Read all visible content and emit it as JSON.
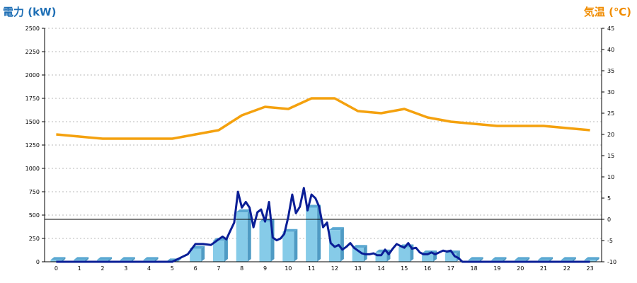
{
  "chart_data": {
    "type": "bar",
    "y_left_label": "電力 (kW)",
    "y_right_label": "気温 (℃)",
    "categories": [
      "0",
      "1",
      "2",
      "3",
      "4",
      "5",
      "6",
      "7",
      "8",
      "9",
      "10",
      "11",
      "12",
      "13",
      "14",
      "15",
      "16",
      "17",
      "18",
      "19",
      "20",
      "21",
      "22",
      "23"
    ],
    "y_left_ticks": [
      "0",
      "250",
      "500",
      "750",
      "1000",
      "1250",
      "1500",
      "1750",
      "2000",
      "2250",
      "2500"
    ],
    "y_right_ticks": [
      "-10",
      "-5",
      "0",
      "5",
      "10",
      "15",
      "20",
      "25",
      "30",
      "35",
      "40",
      "45"
    ],
    "ylim_left": [
      0,
      2500
    ],
    "ylim_right": [
      -10,
      45
    ],
    "grid": true,
    "reference_line_right": 0,
    "series": [
      {
        "type": "bar",
        "axis": "left",
        "values": [
          20,
          20,
          20,
          20,
          20,
          5,
          140,
          225,
          530,
          430,
          320,
          580,
          340,
          150,
          100,
          155,
          90,
          90,
          20,
          20,
          20,
          20,
          20,
          20
        ]
      },
      {
        "type": "line",
        "axis": "left",
        "x": [
          0,
          1,
          2,
          3,
          4,
          5,
          5.33,
          5.67,
          6,
          6.33,
          6.67,
          7,
          7.17,
          7.33,
          7.5,
          7.67,
          7.83,
          8,
          8.17,
          8.33,
          8.5,
          8.67,
          8.83,
          9,
          9.17,
          9.33,
          9.5,
          9.67,
          9.83,
          10,
          10.17,
          10.33,
          10.5,
          10.67,
          10.83,
          11,
          11.17,
          11.33,
          11.5,
          11.67,
          11.83,
          12,
          12.17,
          12.33,
          12.5,
          12.67,
          12.83,
          13,
          13.17,
          13.33,
          13.5,
          13.67,
          13.83,
          14,
          14.17,
          14.33,
          14.5,
          14.67,
          14.83,
          15,
          15.17,
          15.33,
          15.5,
          15.67,
          15.83,
          16,
          16.17,
          16.33,
          16.5,
          16.67,
          16.83,
          17,
          17.17,
          17.33,
          17.5,
          17.67,
          17.83,
          18,
          19,
          20,
          21,
          22,
          23
        ],
        "values": [
          0,
          0,
          0,
          0,
          0,
          0,
          40,
          80,
          190,
          190,
          180,
          240,
          270,
          240,
          330,
          420,
          750,
          580,
          640,
          580,
          370,
          530,
          560,
          430,
          640,
          260,
          230,
          250,
          300,
          480,
          720,
          520,
          590,
          790,
          550,
          720,
          680,
          590,
          370,
          420,
          200,
          160,
          180,
          130,
          160,
          200,
          150,
          120,
          90,
          80,
          80,
          90,
          70,
          70,
          130,
          80,
          140,
          190,
          170,
          150,
          200,
          140,
          150,
          100,
          80,
          80,
          100,
          80,
          100,
          120,
          110,
          120,
          60,
          40,
          0,
          0,
          0,
          0,
          0,
          0,
          0,
          0,
          0
        ]
      },
      {
        "type": "line",
        "axis": "right",
        "values": [
          20,
          19.5,
          19,
          19,
          19,
          19,
          20,
          21,
          24.5,
          26.5,
          26,
          28.5,
          28.5,
          25.5,
          25,
          26,
          24,
          23,
          22.5,
          22,
          22,
          22,
          21.5,
          21
        ]
      }
    ]
  }
}
